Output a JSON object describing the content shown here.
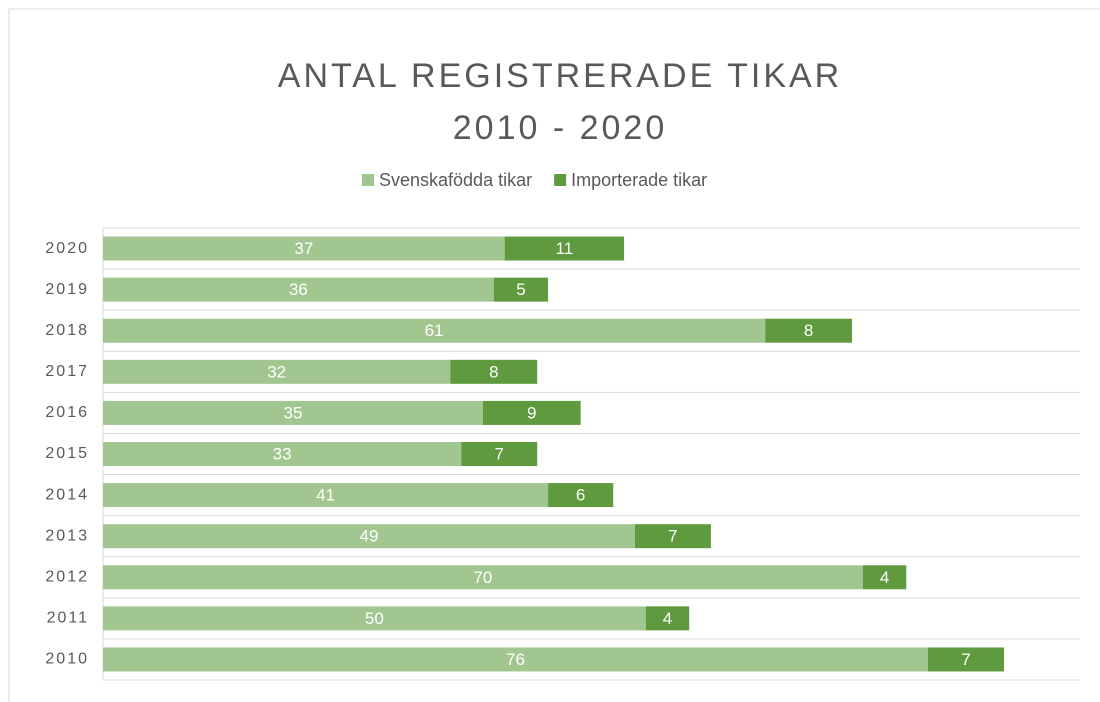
{
  "chart_data": {
    "type": "stacked-barh",
    "title": "ANTAL REGISTRERADE TIKAR",
    "subtitle": "2010 - 2020",
    "categories": [
      "2020",
      "2019",
      "2018",
      "2017",
      "2016",
      "2015",
      "2014",
      "2013",
      "2012",
      "2011",
      "2010"
    ],
    "series": [
      {
        "name": "Svenskafödda tikar",
        "color": "#a2c690",
        "values": [
          37,
          36,
          61,
          32,
          35,
          33,
          41,
          49,
          70,
          50,
          76
        ]
      },
      {
        "name": "Importerade tikar",
        "color": "#5f9a3f",
        "values": [
          11,
          5,
          8,
          8,
          9,
          7,
          6,
          7,
          4,
          4,
          7
        ]
      }
    ],
    "xlim": [
      0,
      90
    ],
    "legend": "top"
  }
}
